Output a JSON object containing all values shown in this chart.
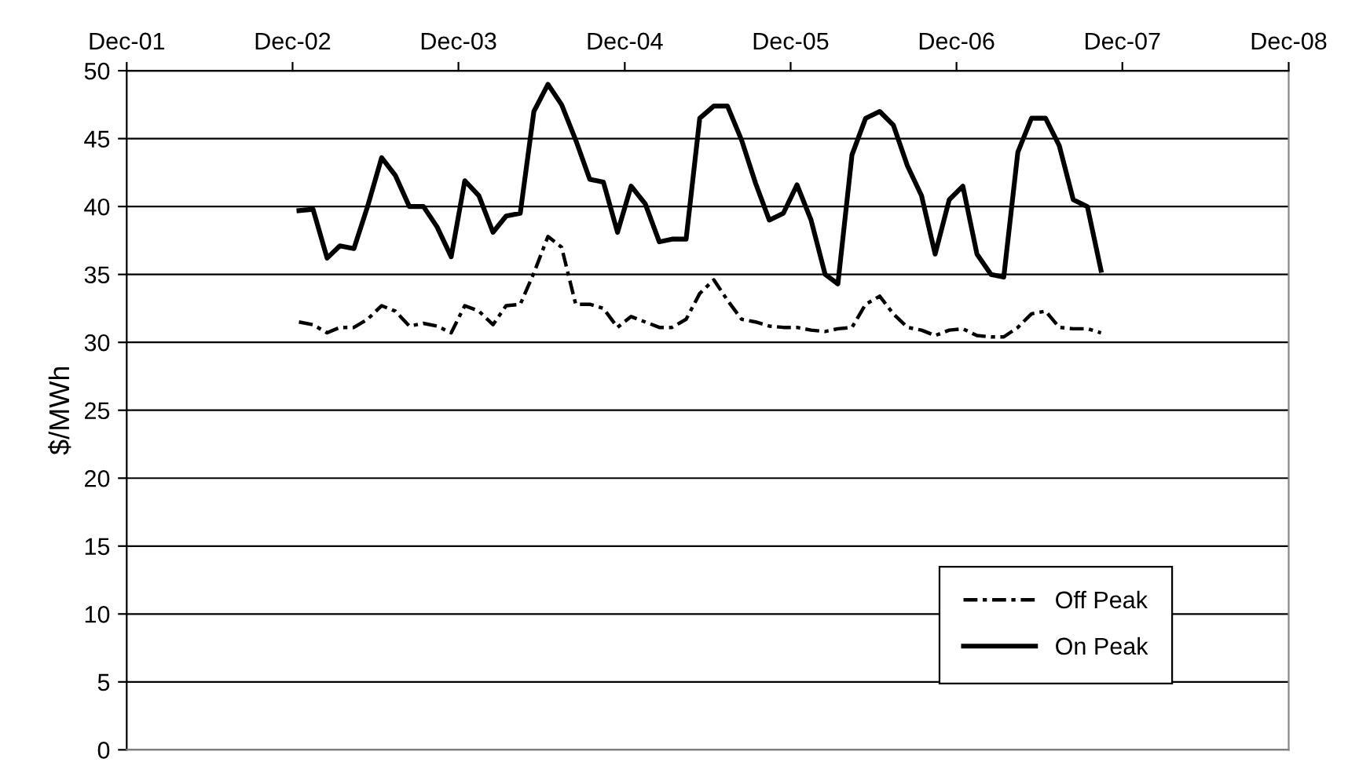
{
  "chart_data": {
    "type": "line",
    "ylabel": "$/MWh",
    "x": [
      "2002-12-15",
      "2003-01-15",
      "2003-02-15",
      "2003-03-15",
      "2003-04-15",
      "2003-05-15",
      "2003-06-15",
      "2003-07-15",
      "2003-08-15",
      "2003-09-15",
      "2003-10-15",
      "2003-11-15",
      "2003-12-15",
      "2004-01-15",
      "2004-02-15",
      "2004-03-15",
      "2004-04-15",
      "2004-05-15",
      "2004-06-15",
      "2004-07-15",
      "2004-08-15",
      "2004-09-15",
      "2004-10-15",
      "2004-11-15",
      "2004-12-15",
      "2005-01-15",
      "2005-02-15",
      "2005-03-15",
      "2005-04-15",
      "2005-05-15",
      "2005-06-15",
      "2005-07-15",
      "2005-08-15",
      "2005-09-15",
      "2005-10-15",
      "2005-11-15",
      "2005-12-15",
      "2006-01-15",
      "2006-02-15",
      "2006-03-15",
      "2006-04-15",
      "2006-05-15",
      "2006-06-15",
      "2006-07-15",
      "2006-08-15",
      "2006-09-15",
      "2006-10-15",
      "2006-11-15",
      "2006-12-15",
      "2007-01-15",
      "2007-02-15",
      "2007-03-15",
      "2007-04-15",
      "2007-05-15",
      "2007-06-15",
      "2007-07-15",
      "2007-08-15",
      "2007-09-15",
      "2007-10-15"
    ],
    "series": [
      {
        "name": "Off Peak",
        "color": "#000000",
        "line_style": "dashed",
        "values": [
          31.5,
          31.3,
          30.7,
          31.1,
          31.1,
          31.7,
          32.7,
          32.3,
          31.2,
          31.4,
          31.2,
          30.7,
          32.7,
          32.3,
          31.3,
          32.7,
          32.8,
          35.1,
          37.8,
          37.0,
          32.8,
          32.8,
          32.5,
          31.1,
          31.9,
          31.5,
          31.1,
          31.1,
          31.7,
          33.6,
          34.6,
          33.1,
          31.7,
          31.5,
          31.2,
          31.1,
          31.1,
          30.9,
          30.8,
          31.0,
          31.1,
          32.8,
          33.4,
          32.1,
          31.1,
          30.9,
          30.5,
          30.9,
          31.0,
          30.5,
          30.4,
          30.4,
          31.1,
          32.1,
          32.3,
          31.1,
          31.0,
          31.0,
          30.7
        ]
      },
      {
        "name": "On Peak",
        "color": "#000000",
        "line_style": "solid",
        "values": [
          39.7,
          39.8,
          36.2,
          37.1,
          36.9,
          40.0,
          43.6,
          42.3,
          40.0,
          40.0,
          38.5,
          36.3,
          41.9,
          40.8,
          38.1,
          39.3,
          39.5,
          47.0,
          49.0,
          47.5,
          44.9,
          42.0,
          41.8,
          38.1,
          41.5,
          40.2,
          37.4,
          37.6,
          37.6,
          46.5,
          47.4,
          47.4,
          44.9,
          41.7,
          39.0,
          39.5,
          41.6,
          39.0,
          35.0,
          34.3,
          43.8,
          46.5,
          47.0,
          46.0,
          43.0,
          40.8,
          36.5,
          40.5,
          41.5,
          36.5,
          35.0,
          34.8,
          44.0,
          46.5,
          46.5,
          44.5,
          40.5,
          40.0,
          35.3
        ]
      }
    ],
    "xlim": [
      "2001-12-01",
      "2008-12-01"
    ],
    "xticks": [
      {
        "value": "2001-12-01",
        "label": "Dec-01"
      },
      {
        "value": "2002-12-01",
        "label": "Dec-02"
      },
      {
        "value": "2003-12-01",
        "label": "Dec-03"
      },
      {
        "value": "2004-12-01",
        "label": "Dec-04"
      },
      {
        "value": "2005-12-01",
        "label": "Dec-05"
      },
      {
        "value": "2006-12-01",
        "label": "Dec-06"
      },
      {
        "value": "2007-12-01",
        "label": "Dec-07"
      },
      {
        "value": "2008-12-01",
        "label": "Dec-08"
      }
    ],
    "ylim": [
      0,
      50
    ],
    "yticks": [
      0,
      5,
      10,
      15,
      20,
      25,
      30,
      35,
      40,
      45,
      50
    ],
    "grid": "y",
    "legend": "bottom right",
    "marker": "none"
  }
}
